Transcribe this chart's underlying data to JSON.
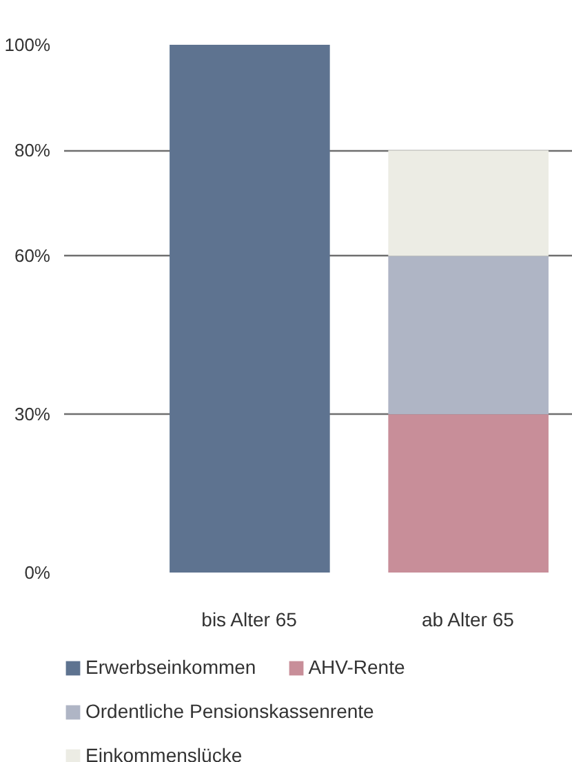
{
  "chart_data": {
    "type": "bar",
    "stacked": true,
    "categories": [
      "bis Alter 65",
      "ab Alter 65"
    ],
    "series": [
      {
        "name": "Erwerbseinkommen",
        "color": "#5e7390",
        "values": [
          100,
          null
        ]
      },
      {
        "name": "AHV-Rente",
        "color": "#c88e99",
        "values": [
          null,
          30
        ]
      },
      {
        "name": "Ordentliche Pensionskassenrente",
        "color": "#afb5c5",
        "values": [
          null,
          30
        ]
      },
      {
        "name": "Einkommenslücke",
        "color": "#ecece4",
        "values": [
          null,
          20
        ]
      }
    ],
    "ylim": [
      0,
      100
    ],
    "yticks": [
      {
        "value": 0,
        "label": "0%"
      },
      {
        "value": 30,
        "label": "30%"
      },
      {
        "value": 60,
        "label": "60%"
      },
      {
        "value": 80,
        "label": "80%"
      },
      {
        "value": 100,
        "label": "100%"
      }
    ],
    "grid": "y",
    "legend": "bottom"
  }
}
